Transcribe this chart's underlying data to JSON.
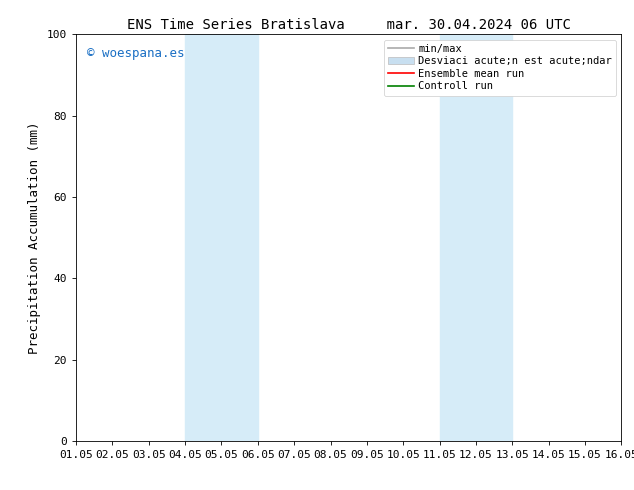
{
  "title": "ENS Time Series Bratislava     mar. 30.04.2024 06 UTC",
  "ylabel": "Precipitation Accumulation (mm)",
  "watermark": "© woespana.es",
  "xlim": [
    1.0,
    16.0
  ],
  "ylim": [
    0,
    100
  ],
  "yticks": [
    0,
    20,
    40,
    60,
    80,
    100
  ],
  "xticks": [
    1,
    2,
    3,
    4,
    5,
    6,
    7,
    8,
    9,
    10,
    11,
    12,
    13,
    14,
    15,
    16
  ],
  "xticklabels": [
    "01.05",
    "02.05",
    "03.05",
    "04.05",
    "05.05",
    "06.05",
    "07.05",
    "08.05",
    "09.05",
    "10.05",
    "11.05",
    "12.05",
    "13.05",
    "14.05",
    "15.05",
    "16.05"
  ],
  "shaded_regions": [
    {
      "xmin": 4.0,
      "xmax": 6.0,
      "color": "#d6ecf8"
    },
    {
      "xmin": 11.0,
      "xmax": 13.0,
      "color": "#d6ecf8"
    }
  ],
  "legend_entries": [
    {
      "label": "min/max",
      "color": "#aaaaaa",
      "lw": 1.2,
      "patch": false
    },
    {
      "label": "Desviaci acute;n est acute;ndar",
      "color": "#c8dff0",
      "patch": true
    },
    {
      "label": "Ensemble mean run",
      "color": "red",
      "lw": 1.2,
      "patch": false
    },
    {
      "label": "Controll run",
      "color": "green",
      "lw": 1.2,
      "patch": false
    }
  ],
  "background_color": "#ffffff",
  "title_fontsize": 10,
  "ylabel_fontsize": 9,
  "tick_fontsize": 8,
  "legend_fontsize": 7.5,
  "watermark_color": "#1a6fc4",
  "watermark_fontsize": 9
}
